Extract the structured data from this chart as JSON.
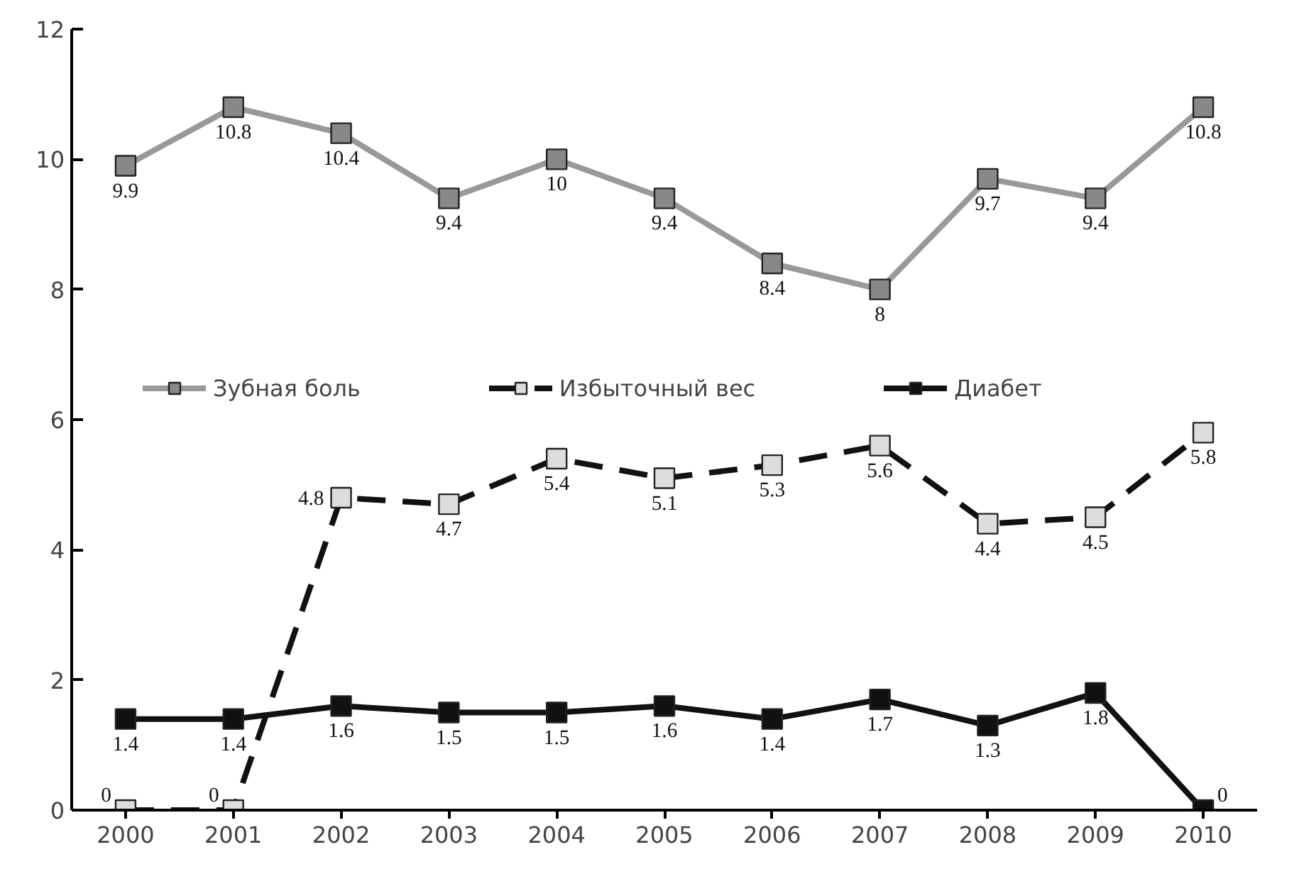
{
  "chart_data": {
    "type": "line",
    "categories": [
      "2000",
      "2001",
      "2002",
      "2003",
      "2004",
      "2005",
      "2006",
      "2007",
      "2008",
      "2009",
      "2010"
    ],
    "series": [
      {
        "name": "Зубная боль",
        "color": "#999999",
        "colors": [
          "#888888",
          "#888888",
          "#888888",
          "#888888",
          "#888888",
          "#888888",
          "#888888",
          "#888888",
          "#888888",
          "#888888",
          "#888888"
        ],
        "line_style": "solid",
        "values": [
          9.9,
          10.8,
          10.4,
          9.4,
          10,
          9.4,
          8.4,
          8,
          9.7,
          9.4,
          10.8
        ]
      },
      {
        "name": "Избыточный вес",
        "color": "#111111",
        "colors": [
          "#dddddd",
          "#dddddd",
          "#dddddd",
          "#dddddd",
          "#dddddd",
          "#dddddd",
          "#dddddd",
          "#dddddd",
          "#dddddd",
          "#dddddd",
          "#dddddd"
        ],
        "line_style": "dashed",
        "values": [
          0,
          0,
          4.8,
          4.7,
          5.4,
          5.1,
          5.3,
          5.6,
          4.4,
          4.5,
          5.8
        ]
      },
      {
        "name": "Диабет",
        "color": "#111111",
        "colors": [
          "#111111",
          "#111111",
          "#111111",
          "#111111",
          "#111111",
          "#111111",
          "#111111",
          "#111111",
          "#111111",
          "#111111",
          "#111111"
        ],
        "line_style": "solid",
        "values": [
          1.4,
          1.4,
          1.6,
          1.5,
          1.5,
          1.6,
          1.4,
          1.7,
          1.3,
          1.8,
          0
        ]
      }
    ],
    "ylim": [
      0,
      12
    ],
    "yticks": [
      0,
      2,
      4,
      6,
      8,
      10,
      12
    ],
    "grid": false,
    "legend": "center",
    "marker": "square",
    "data_labels": true
  }
}
